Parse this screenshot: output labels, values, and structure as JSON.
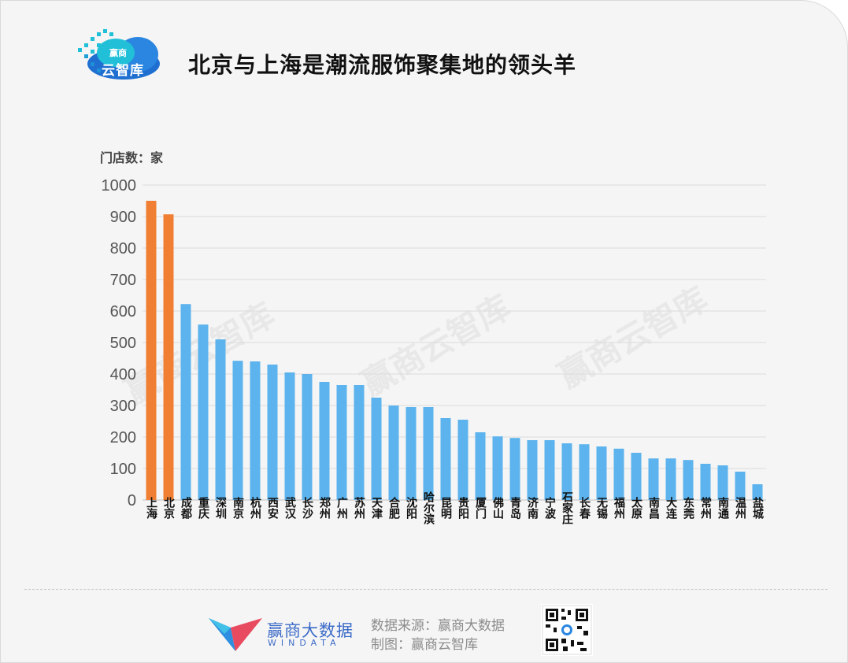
{
  "header": {
    "title": "北京与上海是潮流服饰聚集地的领头羊",
    "logo_line1": "赢商",
    "logo_line2": "云智库"
  },
  "chart_data": {
    "type": "bar",
    "title": "北京与上海是潮流服饰聚集地的领头羊",
    "ylabel": "门店数：家",
    "xlabel": "",
    "ylim": [
      0,
      1000
    ],
    "yticks": [
      0,
      100,
      200,
      300,
      400,
      500,
      600,
      700,
      800,
      900,
      1000
    ],
    "grid": true,
    "categories": [
      "上海",
      "北京",
      "成都",
      "重庆",
      "深圳",
      "南京",
      "杭州",
      "西安",
      "武汉",
      "长沙",
      "郑州",
      "广州",
      "苏州",
      "天津",
      "合肥",
      "沈阳",
      "哈尔滨",
      "昆明",
      "贵阳",
      "厦门",
      "佛山",
      "青岛",
      "济南",
      "宁波",
      "石家庄",
      "长春",
      "无锡",
      "福州",
      "太原",
      "南昌",
      "大连",
      "东莞",
      "常州",
      "南通",
      "温州",
      "盐城"
    ],
    "values": [
      950,
      907,
      622,
      557,
      510,
      442,
      440,
      430,
      405,
      400,
      375,
      365,
      365,
      325,
      300,
      295,
      295,
      260,
      255,
      215,
      202,
      197,
      190,
      190,
      180,
      177,
      170,
      163,
      150,
      132,
      132,
      127,
      115,
      110,
      90,
      50
    ],
    "colors": {
      "highlight": "#f07f34",
      "base": "#5cb3ed"
    },
    "highlight_count": 2,
    "watermark": "赢商云智库"
  },
  "footer": {
    "brand_cn": "赢商大数据",
    "brand_en": "WINDATA",
    "source": "数据来源：赢商大数据",
    "made_by": "制图：赢商云智库"
  }
}
